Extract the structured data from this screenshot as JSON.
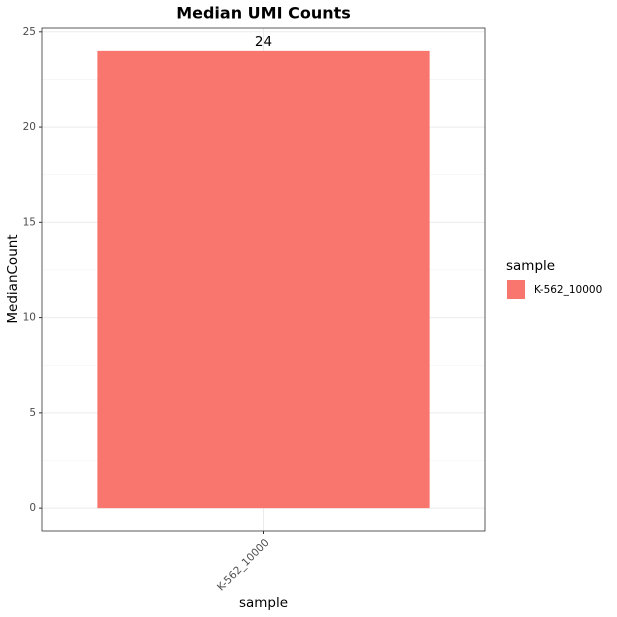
{
  "chart_data": {
    "type": "bar",
    "title": "Median UMI Counts",
    "x_label": "sample",
    "y_label": "MedianCount",
    "categories": [
      "K-562_10000"
    ],
    "series": [
      {
        "name": "K-562_10000",
        "color": "#F8766D",
        "values": [
          24
        ]
      }
    ],
    "legend_title": "sample",
    "legend_position": "right",
    "ylim": [
      -1.2,
      25.2
    ],
    "yticks": [
      0,
      5,
      10,
      15,
      20,
      25
    ],
    "y_minor_ticks": [
      2.5,
      7.5,
      12.5,
      17.5,
      22.5
    ],
    "grid": true,
    "show_value_labels": true
  }
}
